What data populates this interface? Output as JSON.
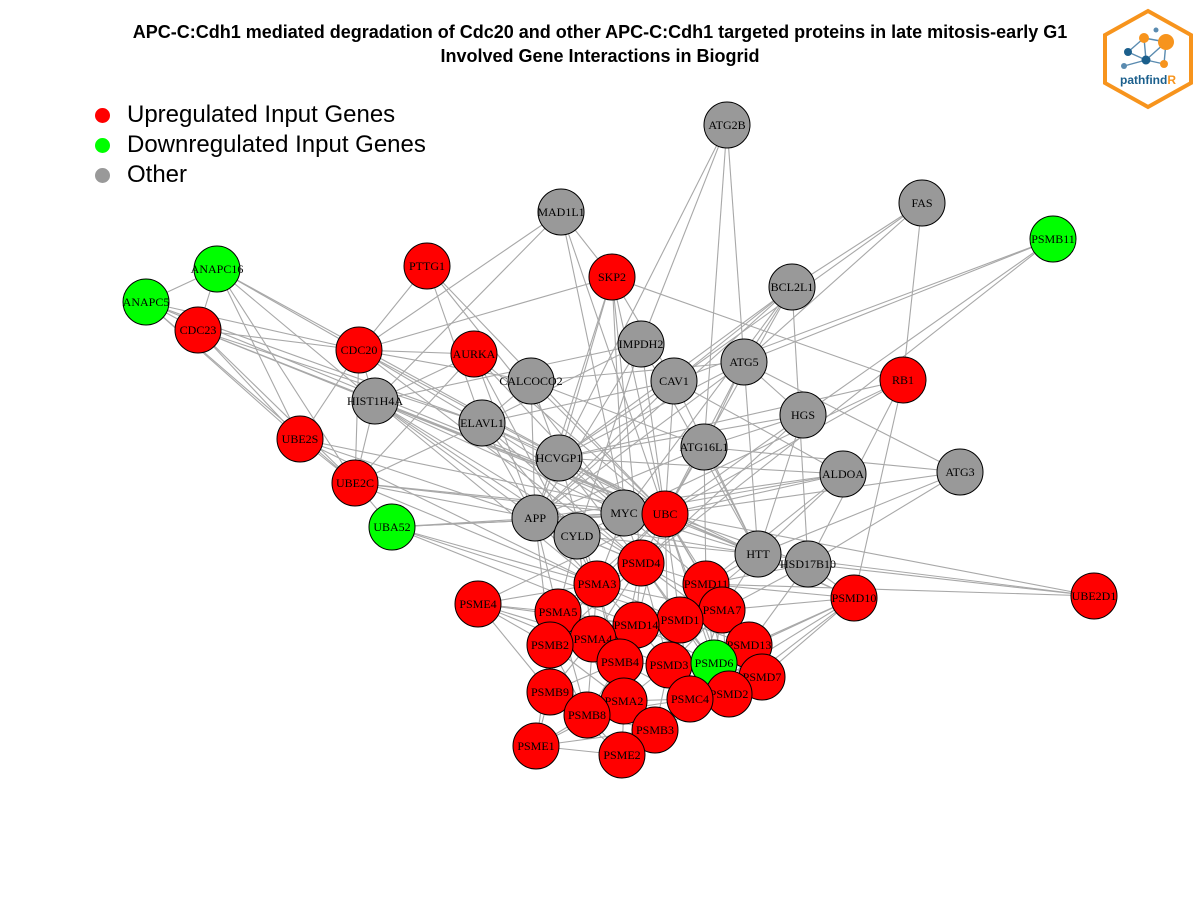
{
  "title": {
    "line1": "APC-C:Cdh1 mediated degradation of Cdc20 and other APC-C:Cdh1 targeted proteins in late mitosis-early G1",
    "line2": "Involved Gene Interactions in Biogrid"
  },
  "legend": [
    {
      "label": "Upregulated Input Genes",
      "color": "#ff0000"
    },
    {
      "label": "Downregulated Input Genes",
      "color": "#00ff00"
    },
    {
      "label": "Other",
      "color": "#999999"
    }
  ],
  "logo": {
    "text_main": "pathfind",
    "text_accent": "R",
    "accent_color": "#f7941d",
    "text_color": "#1b5f8c"
  },
  "colors": {
    "up": "#ff0000",
    "down": "#00ff00",
    "other": "#999999",
    "edge": "#a8a8a8"
  },
  "nodes": [
    {
      "id": "ATG2B",
      "type": "other"
    },
    {
      "id": "MAD1L1",
      "type": "other"
    },
    {
      "id": "FAS",
      "type": "other"
    },
    {
      "id": "PSMB11",
      "type": "down"
    },
    {
      "id": "ANAPC16",
      "type": "down"
    },
    {
      "id": "PTTG1",
      "type": "up"
    },
    {
      "id": "SKP2",
      "type": "up"
    },
    {
      "id": "BCL2L1",
      "type": "other"
    },
    {
      "id": "ANAPC5",
      "type": "down"
    },
    {
      "id": "CDC23",
      "type": "up"
    },
    {
      "id": "IMPDH2",
      "type": "other"
    },
    {
      "id": "CDC20",
      "type": "up"
    },
    {
      "id": "AURKA",
      "type": "up"
    },
    {
      "id": "ATG5",
      "type": "other"
    },
    {
      "id": "RB1",
      "type": "up"
    },
    {
      "id": "CALCOCO2",
      "type": "other"
    },
    {
      "id": "CAV1",
      "type": "other"
    },
    {
      "id": "HIST1H4A",
      "type": "other"
    },
    {
      "id": "HGS",
      "type": "other"
    },
    {
      "id": "ELAVL1",
      "type": "other"
    },
    {
      "id": "UBE2S",
      "type": "up"
    },
    {
      "id": "HCVGP1",
      "type": "other"
    },
    {
      "id": "ATG16L1",
      "type": "other"
    },
    {
      "id": "ALDOA",
      "type": "other"
    },
    {
      "id": "ATG3",
      "type": "other"
    },
    {
      "id": "UBE2C",
      "type": "up"
    },
    {
      "id": "APP",
      "type": "other"
    },
    {
      "id": "MYC",
      "type": "other"
    },
    {
      "id": "UBC",
      "type": "up"
    },
    {
      "id": "UBA52",
      "type": "down"
    },
    {
      "id": "CYLD",
      "type": "other"
    },
    {
      "id": "PSMD4",
      "type": "up"
    },
    {
      "id": "HTT",
      "type": "other"
    },
    {
      "id": "HSD17B10",
      "type": "other"
    },
    {
      "id": "PSMA3",
      "type": "up"
    },
    {
      "id": "PSMD11",
      "type": "up"
    },
    {
      "id": "UBE2D1",
      "type": "up"
    },
    {
      "id": "PSME4",
      "type": "up"
    },
    {
      "id": "PSMA5",
      "type": "up"
    },
    {
      "id": "PSMD10",
      "type": "up"
    },
    {
      "id": "PSMA7",
      "type": "up"
    },
    {
      "id": "PSMD1",
      "type": "up"
    },
    {
      "id": "PSMD14",
      "type": "up"
    },
    {
      "id": "PSMA4",
      "type": "up"
    },
    {
      "id": "PSMB2",
      "type": "up"
    },
    {
      "id": "PSMD13",
      "type": "up"
    },
    {
      "id": "PSMB4",
      "type": "up"
    },
    {
      "id": "PSMD3",
      "type": "up"
    },
    {
      "id": "PSMD6",
      "type": "down"
    },
    {
      "id": "PSMD7",
      "type": "up"
    },
    {
      "id": "PSMB9",
      "type": "up"
    },
    {
      "id": "PSMD2",
      "type": "up"
    },
    {
      "id": "PSMC4",
      "type": "up"
    },
    {
      "id": "PSMA2",
      "type": "up"
    },
    {
      "id": "PSMB8",
      "type": "up"
    },
    {
      "id": "PSMB3",
      "type": "up"
    },
    {
      "id": "PSME1",
      "type": "up"
    },
    {
      "id": "PSME2",
      "type": "up"
    }
  ],
  "edges": [
    [
      "ATG2B",
      "ATG5"
    ],
    [
      "ATG2B",
      "ATG16L1"
    ],
    [
      "ATG2B",
      "IMPDH2"
    ],
    [
      "ATG2B",
      "HCVGP1"
    ],
    [
      "MAD1L1",
      "CDC20"
    ],
    [
      "MAD1L1",
      "SKP2"
    ],
    [
      "MAD1L1",
      "HIST1H4A"
    ],
    [
      "MAD1L1",
      "UBC"
    ],
    [
      "MAD1L1",
      "MYC"
    ],
    [
      "FAS",
      "ATG5"
    ],
    [
      "FAS",
      "CAV1"
    ],
    [
      "FAS",
      "BCL2L1"
    ],
    [
      "FAS",
      "RB1"
    ],
    [
      "PSMB11",
      "HGS"
    ],
    [
      "PSMB11",
      "ATG5"
    ],
    [
      "PSMB11",
      "PSMD4"
    ],
    [
      "PSMB11",
      "CAV1"
    ],
    [
      "ANAPC16",
      "CDC20"
    ],
    [
      "ANAPC16",
      "CDC23"
    ],
    [
      "ANAPC16",
      "UBE2S"
    ],
    [
      "ANAPC16",
      "UBE2C"
    ],
    [
      "ANAPC16",
      "ANAPC5"
    ],
    [
      "ANAPC16",
      "HIST1H4A"
    ],
    [
      "ANAPC16",
      "UBC"
    ],
    [
      "ANAPC5",
      "CDC23"
    ],
    [
      "ANAPC5",
      "CDC20"
    ],
    [
      "ANAPC5",
      "UBE2S"
    ],
    [
      "ANAPC5",
      "UBE2C"
    ],
    [
      "ANAPC5",
      "ELAVL1"
    ],
    [
      "ANAPC5",
      "UBC"
    ],
    [
      "CDC23",
      "CDC20"
    ],
    [
      "CDC23",
      "UBE2S"
    ],
    [
      "CDC23",
      "UBE2C"
    ],
    [
      "CDC23",
      "HIST1H4A"
    ],
    [
      "CDC23",
      "UBC"
    ],
    [
      "CDC23",
      "ELAVL1"
    ],
    [
      "PTTG1",
      "CDC20"
    ],
    [
      "PTTG1",
      "ELAVL1"
    ],
    [
      "PTTG1",
      "MYC"
    ],
    [
      "PTTG1",
      "UBC"
    ],
    [
      "SKP2",
      "CDC20"
    ],
    [
      "SKP2",
      "UBC"
    ],
    [
      "SKP2",
      "MYC"
    ],
    [
      "SKP2",
      "CAV1"
    ],
    [
      "SKP2",
      "HCVGP1"
    ],
    [
      "SKP2",
      "PSMD4"
    ],
    [
      "SKP2",
      "APP"
    ],
    [
      "SKP2",
      "RB1"
    ],
    [
      "BCL2L1",
      "ATG5"
    ],
    [
      "BCL2L1",
      "HCVGP1"
    ],
    [
      "BCL2L1",
      "UBC"
    ],
    [
      "BCL2L1",
      "MYC"
    ],
    [
      "BCL2L1",
      "CAV1"
    ],
    [
      "BCL2L1",
      "HSD17B10"
    ],
    [
      "BCL2L1",
      "APP"
    ],
    [
      "CDC20",
      "AURKA"
    ],
    [
      "CDC20",
      "UBE2S"
    ],
    [
      "CDC20",
      "UBE2C"
    ],
    [
      "CDC20",
      "HIST1H4A"
    ],
    [
      "CDC20",
      "UBC"
    ],
    [
      "CDC20",
      "ELAVL1"
    ],
    [
      "CDC20",
      "CALCOCO2"
    ],
    [
      "CDC20",
      "PSMD4"
    ],
    [
      "AURKA",
      "UBC"
    ],
    [
      "AURKA",
      "MYC"
    ],
    [
      "AURKA",
      "UBE2C"
    ],
    [
      "AURKA",
      "PSMA3"
    ],
    [
      "AURKA",
      "HIST1H4A"
    ],
    [
      "AURKA",
      "APP"
    ],
    [
      "IMPDH2",
      "UBC"
    ],
    [
      "IMPDH2",
      "HIST1H4A"
    ],
    [
      "IMPDH2",
      "APP"
    ],
    [
      "IMPDH2",
      "ELAVL1"
    ],
    [
      "IMPDH2",
      "CYLD"
    ],
    [
      "IMPDH2",
      "HTT"
    ],
    [
      "ATG5",
      "ATG16L1"
    ],
    [
      "ATG5",
      "ATG3"
    ],
    [
      "ATG5",
      "HGS"
    ],
    [
      "ATG5",
      "CALCOCO2"
    ],
    [
      "ATG5",
      "HCVGP1"
    ],
    [
      "ATG5",
      "UBC"
    ],
    [
      "ATG5",
      "HTT"
    ],
    [
      "ATG5",
      "APP"
    ],
    [
      "RB1",
      "UBC"
    ],
    [
      "RB1",
      "MYC"
    ],
    [
      "RB1",
      "PSMD10"
    ],
    [
      "RB1",
      "HSD17B10"
    ],
    [
      "RB1",
      "HCVGP1"
    ],
    [
      "CALCOCO2",
      "ATG16L1"
    ],
    [
      "CALCOCO2",
      "UBC"
    ],
    [
      "CALCOCO2",
      "HCVGP1"
    ],
    [
      "CALCOCO2",
      "APP"
    ],
    [
      "CALCOCO2",
      "ELAVL1"
    ],
    [
      "CAV1",
      "UBC"
    ],
    [
      "CAV1",
      "APP"
    ],
    [
      "CAV1",
      "HTT"
    ],
    [
      "CAV1",
      "HCVGP1"
    ],
    [
      "CAV1",
      "ELAVL1"
    ],
    [
      "CAV1",
      "ALDOA"
    ],
    [
      "HIST1H4A",
      "UBC"
    ],
    [
      "HIST1H4A",
      "MYC"
    ],
    [
      "HIST1H4A",
      "APP"
    ],
    [
      "HIST1H4A",
      "UBE2C"
    ],
    [
      "HIST1H4A",
      "PSMD4"
    ],
    [
      "HIST1H4A",
      "CYLD"
    ],
    [
      "HIST1H4A",
      "PSMA3"
    ],
    [
      "HIST1H4A",
      "HTT"
    ],
    [
      "HGS",
      "UBC"
    ],
    [
      "HGS",
      "HTT"
    ],
    [
      "HGS",
      "ATG16L1"
    ],
    [
      "HGS",
      "PSMD4"
    ],
    [
      "HGS",
      "HCVGP1"
    ],
    [
      "ELAVL1",
      "UBC"
    ],
    [
      "ELAVL1",
      "MYC"
    ],
    [
      "ELAVL1",
      "APP"
    ],
    [
      "ELAVL1",
      "HCVGP1"
    ],
    [
      "ELAVL1",
      "CYLD"
    ],
    [
      "ELAVL1",
      "UBE2C"
    ],
    [
      "ELAVL1",
      "PSMD4"
    ],
    [
      "UBE2S",
      "UBE2C"
    ],
    [
      "UBE2S",
      "UBC"
    ],
    [
      "UBE2S",
      "APP"
    ],
    [
      "UBE2S",
      "PSMA3"
    ],
    [
      "HCVGP1",
      "UBC"
    ],
    [
      "HCVGP1",
      "APP"
    ],
    [
      "HCVGP1",
      "MYC"
    ],
    [
      "HCVGP1",
      "PSMA3"
    ],
    [
      "HCVGP1",
      "PSMD4"
    ],
    [
      "HCVGP1",
      "HTT"
    ],
    [
      "ATG16L1",
      "UBC"
    ],
    [
      "ATG16L1",
      "HTT"
    ],
    [
      "ATG16L1",
      "APP"
    ],
    [
      "ATG16L1",
      "PSMD11"
    ],
    [
      "ALDOA",
      "UBC"
    ],
    [
      "ALDOA",
      "HTT"
    ],
    [
      "ALDOA",
      "MYC"
    ],
    [
      "ALDOA",
      "APP"
    ],
    [
      "ALDOA",
      "PSMD11"
    ],
    [
      "ALDOA",
      "HCVGP1"
    ],
    [
      "ATG3",
      "ATG16L1"
    ],
    [
      "ATG3",
      "UBC"
    ],
    [
      "ATG3",
      "HTT"
    ],
    [
      "ATG3",
      "HSD17B10"
    ],
    [
      "UBE2C",
      "UBC"
    ],
    [
      "UBE2C",
      "APP"
    ],
    [
      "UBE2C",
      "UBA52"
    ],
    [
      "UBE2C",
      "PSMA3"
    ],
    [
      "UBE2C",
      "MYC"
    ],
    [
      "APP",
      "UBC"
    ],
    [
      "APP",
      "MYC"
    ],
    [
      "APP",
      "HTT"
    ],
    [
      "APP",
      "PSMA3"
    ],
    [
      "APP",
      "PSMA5"
    ],
    [
      "APP",
      "PSMD4"
    ],
    [
      "APP",
      "PSMB2"
    ],
    [
      "MYC",
      "UBC"
    ],
    [
      "MYC",
      "PSMD4"
    ],
    [
      "MYC",
      "PSMA3"
    ],
    [
      "MYC",
      "CYLD"
    ],
    [
      "MYC",
      "PSMD11"
    ],
    [
      "MYC",
      "HTT"
    ],
    [
      "UBC",
      "PSMD4"
    ],
    [
      "UBC",
      "PSMA3"
    ],
    [
      "UBC",
      "PSMD11"
    ],
    [
      "UBC",
      "HTT"
    ],
    [
      "UBC",
      "HSD17B10"
    ],
    [
      "UBC",
      "UBE2D1"
    ],
    [
      "UBC",
      "PSMD10"
    ],
    [
      "UBC",
      "PSMA7"
    ],
    [
      "UBC",
      "PSMD1"
    ],
    [
      "UBC",
      "PSMD14"
    ],
    [
      "UBC",
      "UBA52"
    ],
    [
      "UBC",
      "PSME4"
    ],
    [
      "UBC",
      "CYLD"
    ],
    [
      "UBC",
      "PSMA5"
    ],
    [
      "UBC",
      "PSMD13"
    ],
    [
      "UBC",
      "PSMD3"
    ],
    [
      "UBC",
      "PSMD6"
    ],
    [
      "UBC",
      "PSMD7"
    ],
    [
      "UBC",
      "PSMD2"
    ],
    [
      "UBA52",
      "UBC"
    ],
    [
      "UBA52",
      "PSMA3"
    ],
    [
      "UBA52",
      "PSMD14"
    ],
    [
      "UBA52",
      "PSMD1"
    ],
    [
      "UBA52",
      "MYC"
    ],
    [
      "CYLD",
      "PSMD4"
    ],
    [
      "CYLD",
      "PSMA3"
    ],
    [
      "CYLD",
      "PSMA5"
    ],
    [
      "CYLD",
      "PSMA4"
    ],
    [
      "CYLD",
      "HTT"
    ],
    [
      "HTT",
      "PSMD11"
    ],
    [
      "HTT",
      "PSMA7"
    ],
    [
      "HTT",
      "PSMD10"
    ],
    [
      "HTT",
      "UBE2D1"
    ],
    [
      "HTT",
      "PSMD1"
    ],
    [
      "HSD17B10",
      "PSMD11"
    ],
    [
      "HSD17B10",
      "PSMA7"
    ],
    [
      "HSD17B10",
      "PSMD13"
    ],
    [
      "HSD17B10",
      "PSMD10"
    ],
    [
      "PSMD4",
      "PSMA3"
    ],
    [
      "PSMD4",
      "PSMD11"
    ],
    [
      "PSMD4",
      "PSMA5"
    ],
    [
      "PSMD4",
      "PSMD14"
    ],
    [
      "PSMD4",
      "PSMD1"
    ],
    [
      "PSMD4",
      "PSMA4"
    ],
    [
      "PSMD4",
      "PSMB4"
    ],
    [
      "PSMD4",
      "PSMD3"
    ],
    [
      "PSMD4",
      "PSMA7"
    ],
    [
      "PSMD4",
      "PSMD6"
    ],
    [
      "PSMD4",
      "PSMD13"
    ],
    [
      "PSMD4",
      "PSMB2"
    ],
    [
      "PSMA3",
      "PSMA5"
    ],
    [
      "PSMA3",
      "PSMA4"
    ],
    [
      "PSMA3",
      "PSMD14"
    ],
    [
      "PSMA3",
      "PSMB2"
    ],
    [
      "PSMA3",
      "PSMB4"
    ],
    [
      "PSMA3",
      "PSMA7"
    ],
    [
      "PSMA3",
      "PSMD1"
    ],
    [
      "PSMA3",
      "PSME4"
    ],
    [
      "PSMA3",
      "PSMA2"
    ],
    [
      "PSMD11",
      "PSMA7"
    ],
    [
      "PSMD11",
      "PSMD1"
    ],
    [
      "PSMD11",
      "PSMD14"
    ],
    [
      "PSMD11",
      "PSMD13"
    ],
    [
      "PSMD11",
      "PSMD6"
    ],
    [
      "PSMD11",
      "PSMD3"
    ],
    [
      "PSMD11",
      "PSMD7"
    ],
    [
      "PSMD11",
      "PSMD2"
    ],
    [
      "PSMD11",
      "PSMD10"
    ],
    [
      "UBE2D1",
      "PSMD11"
    ],
    [
      "UBE2D1",
      "HSD17B10"
    ],
    [
      "PSME4",
      "PSMA5"
    ],
    [
      "PSME4",
      "PSMB2"
    ],
    [
      "PSME4",
      "PSMA4"
    ],
    [
      "PSME4",
      "PSMB9"
    ],
    [
      "PSME4",
      "PSMD14"
    ],
    [
      "PSME4",
      "PSMB4"
    ],
    [
      "PSMA5",
      "PSMA4"
    ],
    [
      "PSMA5",
      "PSMB2"
    ],
    [
      "PSMA5",
      "PSMD14"
    ],
    [
      "PSMA5",
      "PSMB4"
    ],
    [
      "PSMA5",
      "PSMB9"
    ],
    [
      "PSMA5",
      "PSMA2"
    ],
    [
      "PSMA5",
      "PSMB8"
    ],
    [
      "PSMD10",
      "PSMD13"
    ],
    [
      "PSMD10",
      "PSMD7"
    ],
    [
      "PSMD10",
      "PSMD2"
    ],
    [
      "PSMD10",
      "PSMD6"
    ],
    [
      "PSMD10",
      "PSMA7"
    ],
    [
      "PSMD10",
      "PSMC4"
    ],
    [
      "PSMA7",
      "PSMD1"
    ],
    [
      "PSMA7",
      "PSMD13"
    ],
    [
      "PSMA7",
      "PSMD6"
    ],
    [
      "PSMA7",
      "PSMD3"
    ],
    [
      "PSMA7",
      "PSMD14"
    ],
    [
      "PSMA7",
      "PSMC4"
    ],
    [
      "PSMA7",
      "PSMD2"
    ],
    [
      "PSMA7",
      "PSMD7"
    ],
    [
      "PSMD1",
      "PSMD14"
    ],
    [
      "PSMD1",
      "PSMD3"
    ],
    [
      "PSMD1",
      "PSMD6"
    ],
    [
      "PSMD1",
      "PSMD13"
    ],
    [
      "PSMD1",
      "PSMB4"
    ],
    [
      "PSMD1",
      "PSMD2"
    ],
    [
      "PSMD1",
      "PSMC4"
    ],
    [
      "PSMD14",
      "PSMA4"
    ],
    [
      "PSMD14",
      "PSMB4"
    ],
    [
      "PSMD14",
      "PSMD3"
    ],
    [
      "PSMD14",
      "PSMD6"
    ],
    [
      "PSMD14",
      "PSMA2"
    ],
    [
      "PSMD14",
      "PSMB2"
    ],
    [
      "PSMA4",
      "PSMB2"
    ],
    [
      "PSMA4",
      "PSMB4"
    ],
    [
      "PSMA4",
      "PSMB9"
    ],
    [
      "PSMA4",
      "PSMA2"
    ],
    [
      "PSMA4",
      "PSMB8"
    ],
    [
      "PSMA4",
      "PSMD3"
    ],
    [
      "PSMB2",
      "PSMB4"
    ],
    [
      "PSMB2",
      "PSMB9"
    ],
    [
      "PSMB2",
      "PSMB8"
    ],
    [
      "PSMB2",
      "PSMA2"
    ],
    [
      "PSMB2",
      "PSME1"
    ],
    [
      "PSMD13",
      "PSMD6"
    ],
    [
      "PSMD13",
      "PSMD7"
    ],
    [
      "PSMD13",
      "PSMD2"
    ],
    [
      "PSMD13",
      "PSMD3"
    ],
    [
      "PSMD13",
      "PSMC4"
    ],
    [
      "PSMB4",
      "PSMD3"
    ],
    [
      "PSMB4",
      "PSMA2"
    ],
    [
      "PSMB4",
      "PSMB8"
    ],
    [
      "PSMB4",
      "PSMB3"
    ],
    [
      "PSMB4",
      "PSMC4"
    ],
    [
      "PSMB4",
      "PSMB9"
    ],
    [
      "PSMD3",
      "PSMD6"
    ],
    [
      "PSMD3",
      "PSMC4"
    ],
    [
      "PSMD3",
      "PSMA2"
    ],
    [
      "PSMD3",
      "PSMB3"
    ],
    [
      "PSMD3",
      "PSMD2"
    ],
    [
      "PSMD6",
      "PSMD7"
    ],
    [
      "PSMD6",
      "PSMD2"
    ],
    [
      "PSMD6",
      "PSMC4"
    ],
    [
      "PSMD7",
      "PSMD2"
    ],
    [
      "PSMD7",
      "PSMC4"
    ],
    [
      "PSMB9",
      "PSMB8"
    ],
    [
      "PSMB9",
      "PSMA2"
    ],
    [
      "PSMB9",
      "PSME1"
    ],
    [
      "PSMB9",
      "PSMB3"
    ],
    [
      "PSMB9",
      "PSME2"
    ],
    [
      "PSMD2",
      "PSMC4"
    ],
    [
      "PSMD2",
      "PSMB3"
    ],
    [
      "PSMC4",
      "PSMA2"
    ],
    [
      "PSMC4",
      "PSMB3"
    ],
    [
      "PSMC4",
      "PSMB8"
    ],
    [
      "PSMA2",
      "PSMB8"
    ],
    [
      "PSMA2",
      "PSMB3"
    ],
    [
      "PSMA2",
      "PSME2"
    ],
    [
      "PSMA2",
      "PSME1"
    ],
    [
      "PSMB8",
      "PSMB3"
    ],
    [
      "PSMB8",
      "PSME1"
    ],
    [
      "PSMB8",
      "PSME2"
    ],
    [
      "PSMB3",
      "PSME2"
    ],
    [
      "PSMB3",
      "PSME1"
    ],
    [
      "PSME1",
      "PSME2"
    ]
  ]
}
